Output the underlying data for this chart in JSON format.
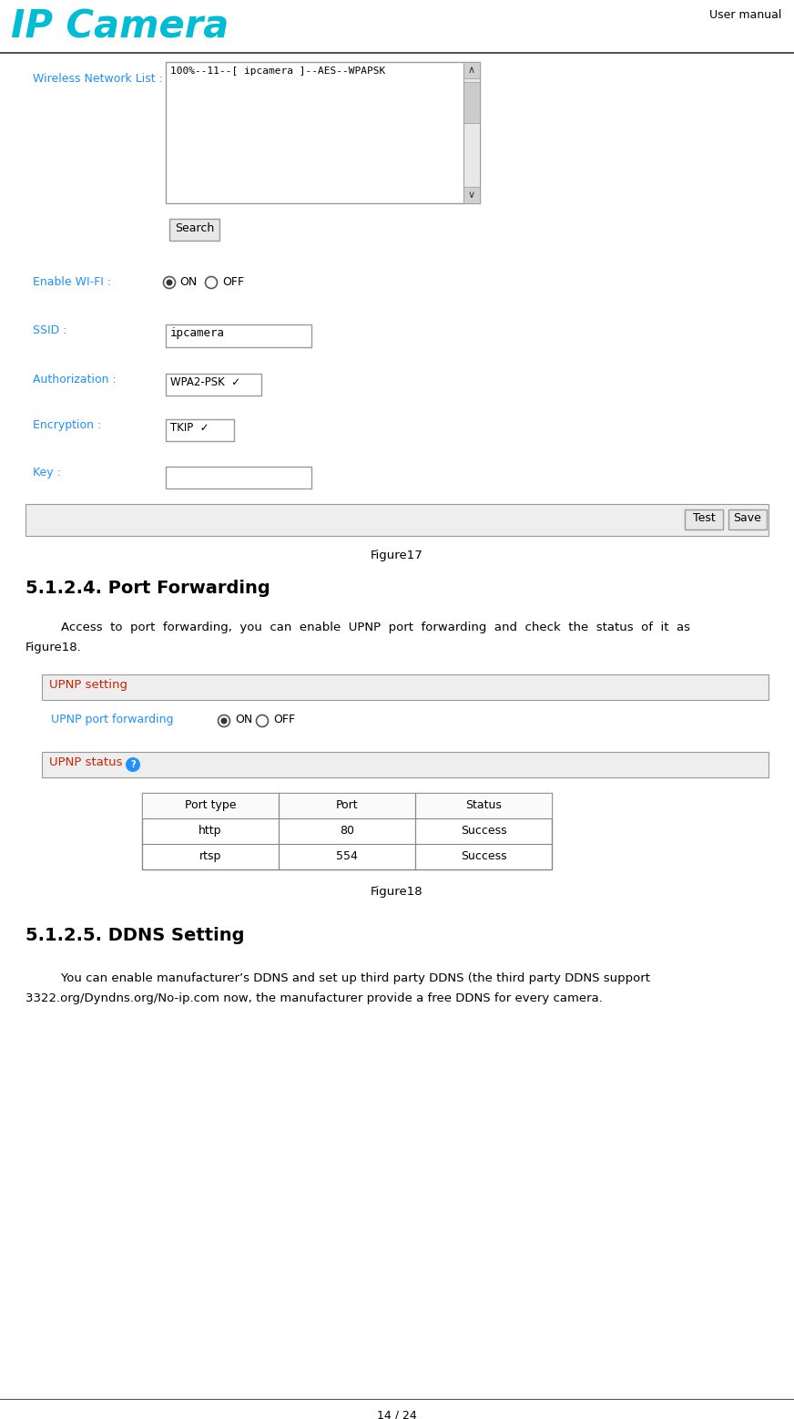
{
  "bg_color": "#ffffff",
  "header_logo_color": "#00bcd4",
  "header_text": "User manual",
  "page_number": "14 / 24",
  "figure17_caption": "Figure17",
  "section_title": "5.1.2.4. Port Forwarding",
  "para1_line1": "    Access  to  port  forwarding,  you  can  enable  UPNP  port  forwarding  and  check  the  status  of  it  as",
  "para1_line2": "Figure18.",
  "upnp_setting_label": "UPNP setting",
  "upnp_port_label": "UPNP port forwarding",
  "upnp_status_label": "UPNP status",
  "table_headers": [
    "Port type",
    "Port",
    "Status"
  ],
  "table_row1": [
    "http",
    "80",
    "Success"
  ],
  "table_row2": [
    "rtsp",
    "554",
    "Success"
  ],
  "figure18_caption": "Figure18",
  "section2_title": "5.1.2.5. DDNS Setting",
  "para2_line1": "    You can enable manufacturer’s DDNS and set up third party DDNS (the third party DDNS support",
  "para2_line2": "3322.org/Dyndns.org/No-ip.com now, the manufacturer provide a free DDNS for every camera.",
  "blue_label_color": "#1e90ff",
  "red_label_color": "#cc2200",
  "gray_bg": "#eeeeee",
  "border_color": "#999999",
  "table_border_color": "#888888",
  "wireless_network_list_label": "Wireless Network List :",
  "network_item": "100%--11--[ ipcamera ]--AES--WPAPSK",
  "search_btn": "Search",
  "enable_wifi_label": "Enable WI-FI :",
  "ssid_label": "SSID :",
  "ssid_value": "ipcamera",
  "auth_label": "Authorization :",
  "enc_label": "Encryption :",
  "key_label": "Key :",
  "test_btn": "Test",
  "save_btn": "Save"
}
